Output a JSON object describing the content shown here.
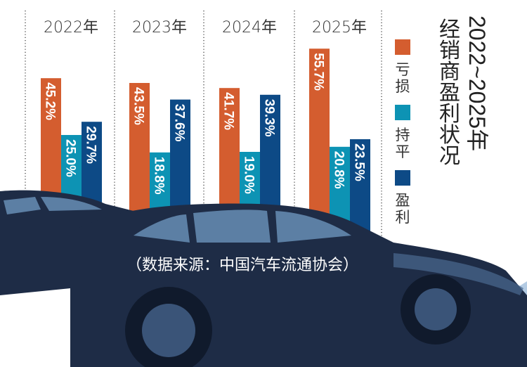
{
  "chart_data": {
    "type": "bar",
    "title": "2022~2025年经销商盈利状况",
    "title_parts": [
      "2022~2025年",
      "经销商盈利状况"
    ],
    "categories": [
      "2022年",
      "2023年",
      "2024年",
      "2025年"
    ],
    "series": [
      {
        "name": "亏损",
        "values": [
          45.2,
          43.5,
          41.7,
          55.7
        ],
        "labels": [
          "45.2%",
          "43.5%",
          "41.7%",
          "55.7%"
        ],
        "color": "#d45d2f"
      },
      {
        "name": "持平",
        "values": [
          25.0,
          18.8,
          19.0,
          20.8
        ],
        "labels": [
          "25.0%",
          "18.8%",
          "19.0%",
          "20.8%"
        ],
        "color": "#0d93b4"
      },
      {
        "name": "盈利",
        "values": [
          29.7,
          37.6,
          39.3,
          23.5
        ],
        "labels": [
          "29.7%",
          "37.6%",
          "39.3%",
          "23.5%"
        ],
        "color": "#0d4a86"
      }
    ],
    "legend": "right",
    "grid": false,
    "ylim": [
      0,
      60
    ],
    "source": "（数据来源：中国汽车流通协会）"
  },
  "colors": {
    "car": "#1e2c46",
    "window": "#5c7fa4",
    "road": "#a9c4df"
  }
}
